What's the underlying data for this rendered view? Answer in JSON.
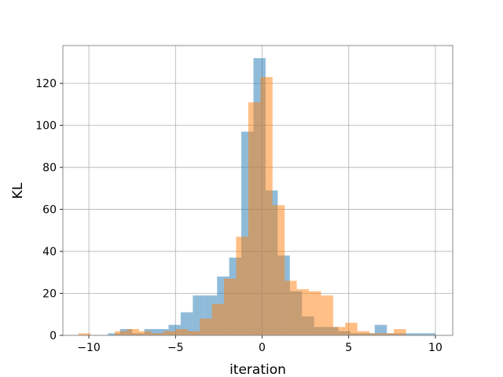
{
  "chart_data": {
    "type": "bar",
    "subtype": "overlapping-histogram",
    "title": "",
    "xlabel": "iteration",
    "ylabel": "KL",
    "xlim": [
      -11.5,
      11.0
    ],
    "ylim": [
      0,
      138
    ],
    "xticks": [
      -10,
      -5,
      0,
      5,
      10
    ],
    "yticks": [
      0,
      20,
      40,
      60,
      80,
      100,
      120
    ],
    "grid": true,
    "legend": "none",
    "series": [
      {
        "name": "",
        "color": "#1f77b4",
        "opacity": 0.5,
        "bins": [
          {
            "x0": -8.9,
            "x1": -8.2,
            "count": 1
          },
          {
            "x0": -8.2,
            "x1": -7.5,
            "count": 3
          },
          {
            "x0": -7.5,
            "x1": -6.8,
            "count": 1
          },
          {
            "x0": -6.8,
            "x1": -6.1,
            "count": 3
          },
          {
            "x0": -6.1,
            "x1": -5.4,
            "count": 3
          },
          {
            "x0": -5.4,
            "x1": -4.7,
            "count": 5
          },
          {
            "x0": -4.7,
            "x1": -4.0,
            "count": 11
          },
          {
            "x0": -4.0,
            "x1": -3.3,
            "count": 19
          },
          {
            "x0": -3.3,
            "x1": -2.6,
            "count": 19
          },
          {
            "x0": -2.6,
            "x1": -1.9,
            "count": 28
          },
          {
            "x0": -1.9,
            "x1": -1.2,
            "count": 37
          },
          {
            "x0": -1.2,
            "x1": -0.5,
            "count": 97
          },
          {
            "x0": -0.5,
            "x1": 0.2,
            "count": 132
          },
          {
            "x0": 0.2,
            "x1": 0.9,
            "count": 69
          },
          {
            "x0": 0.9,
            "x1": 1.6,
            "count": 38
          },
          {
            "x0": 1.6,
            "x1": 2.3,
            "count": 21
          },
          {
            "x0": 2.3,
            "x1": 3.0,
            "count": 9
          },
          {
            "x0": 3.0,
            "x1": 3.7,
            "count": 4
          },
          {
            "x0": 3.7,
            "x1": 4.4,
            "count": 4
          },
          {
            "x0": 4.4,
            "x1": 5.1,
            "count": 2
          },
          {
            "x0": 5.1,
            "x1": 5.8,
            "count": 1
          },
          {
            "x0": 5.8,
            "x1": 6.5,
            "count": 1
          },
          {
            "x0": 6.5,
            "x1": 7.2,
            "count": 5
          },
          {
            "x0": 7.2,
            "x1": 7.9,
            "count": 1
          },
          {
            "x0": 7.9,
            "x1": 8.6,
            "count": 1
          },
          {
            "x0": 8.6,
            "x1": 9.3,
            "count": 1
          },
          {
            "x0": 9.3,
            "x1": 10.0,
            "count": 1
          }
        ]
      },
      {
        "name": "",
        "color": "#ff7f0e",
        "opacity": 0.5,
        "bins": [
          {
            "x0": -10.6,
            "x1": -9.9,
            "count": 1
          },
          {
            "x0": -9.9,
            "x1": -9.2,
            "count": 0
          },
          {
            "x0": -9.2,
            "x1": -8.5,
            "count": 0
          },
          {
            "x0": -8.5,
            "x1": -7.8,
            "count": 2
          },
          {
            "x0": -7.8,
            "x1": -7.1,
            "count": 3
          },
          {
            "x0": -7.1,
            "x1": -6.4,
            "count": 2
          },
          {
            "x0": -6.4,
            "x1": -5.7,
            "count": 1
          },
          {
            "x0": -5.7,
            "x1": -5.0,
            "count": 2
          },
          {
            "x0": -5.0,
            "x1": -4.3,
            "count": 3
          },
          {
            "x0": -4.3,
            "x1": -3.6,
            "count": 2
          },
          {
            "x0": -3.6,
            "x1": -2.9,
            "count": 8
          },
          {
            "x0": -2.9,
            "x1": -2.2,
            "count": 15
          },
          {
            "x0": -2.2,
            "x1": -1.5,
            "count": 27
          },
          {
            "x0": -1.5,
            "x1": -0.8,
            "count": 47
          },
          {
            "x0": -0.8,
            "x1": -0.1,
            "count": 111
          },
          {
            "x0": -0.1,
            "x1": 0.6,
            "count": 123
          },
          {
            "x0": 0.6,
            "x1": 1.3,
            "count": 62
          },
          {
            "x0": 1.3,
            "x1": 2.0,
            "count": 26
          },
          {
            "x0": 2.0,
            "x1": 2.7,
            "count": 22
          },
          {
            "x0": 2.7,
            "x1": 3.4,
            "count": 21
          },
          {
            "x0": 3.4,
            "x1": 4.1,
            "count": 19
          },
          {
            "x0": 4.1,
            "x1": 4.8,
            "count": 4
          },
          {
            "x0": 4.8,
            "x1": 5.5,
            "count": 6
          },
          {
            "x0": 5.5,
            "x1": 6.2,
            "count": 2
          },
          {
            "x0": 6.2,
            "x1": 6.9,
            "count": 1
          },
          {
            "x0": 6.9,
            "x1": 7.6,
            "count": 1
          },
          {
            "x0": 7.6,
            "x1": 8.3,
            "count": 3
          }
        ]
      }
    ]
  }
}
